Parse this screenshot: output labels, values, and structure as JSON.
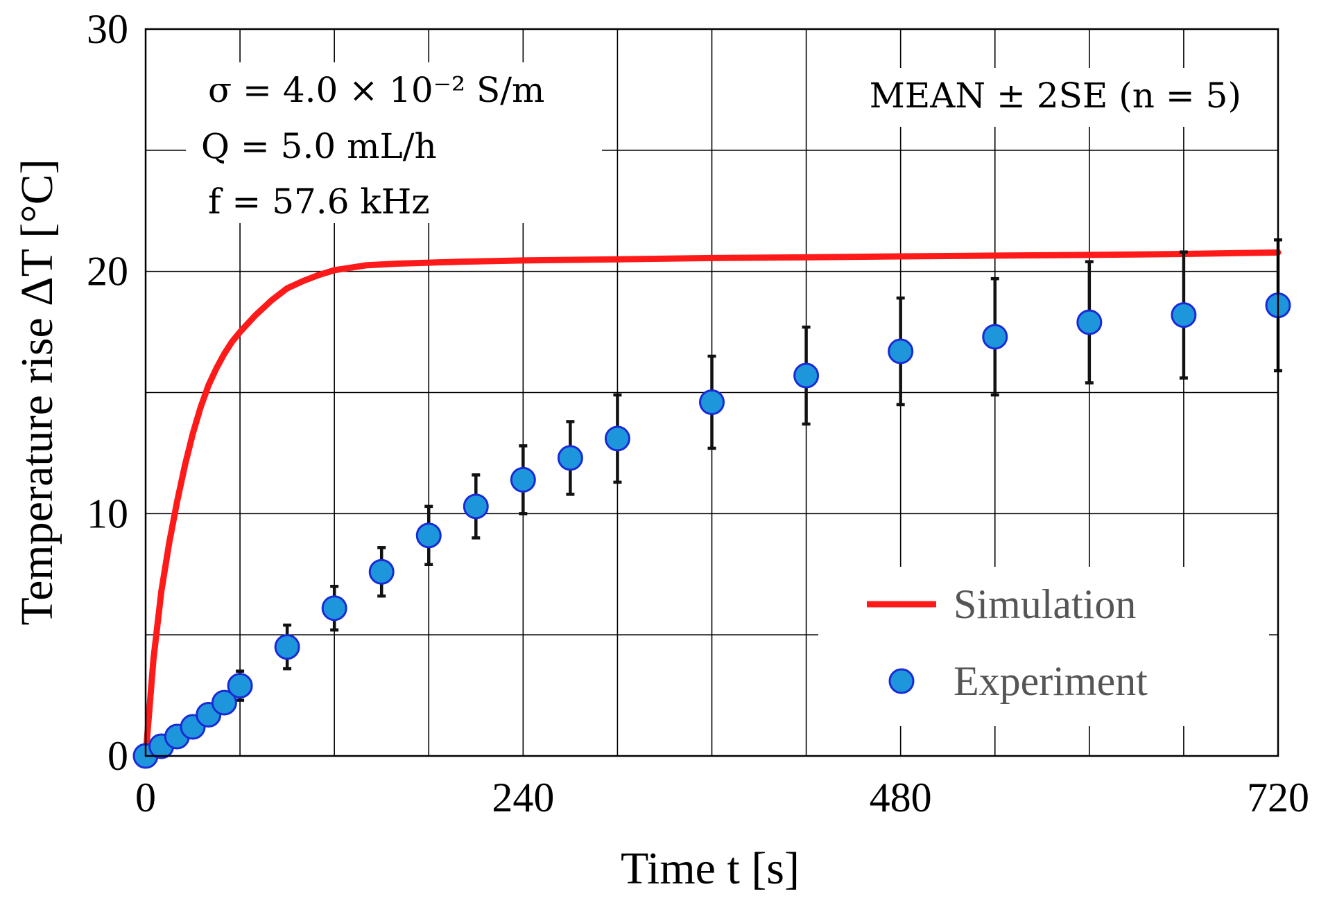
{
  "chart_data": {
    "type": "line",
    "xlabel": "Time t [s]",
    "ylabel": "Temperature rise ΔT [°C]",
    "xlim": [
      0,
      720
    ],
    "ylim": [
      0,
      30
    ],
    "xticks": [
      0,
      240,
      480,
      720
    ],
    "yticks": [
      0,
      10,
      20,
      30
    ],
    "grid": true,
    "legend_position": "bottom-right",
    "annotations": {
      "params": [
        "σ = 4.0 × 10⁻² S/m",
        "Q = 5.0 mL/h",
        "f = 57.6 kHz"
      ],
      "stat": "MEAN ± 2SE (n = 5)"
    },
    "series": [
      {
        "name": "Simulation",
        "kind": "line",
        "color": "#ff1a1a",
        "x": [
          0,
          5,
          10,
          15,
          20,
          25,
          30,
          35,
          40,
          45,
          50,
          55,
          60,
          70,
          80,
          90,
          100,
          110,
          120,
          140,
          160,
          180,
          200,
          240,
          300,
          360,
          420,
          480,
          540,
          600,
          660,
          720
        ],
        "y": [
          0,
          4.0,
          6.8,
          8.8,
          10.5,
          12.0,
          13.3,
          14.4,
          15.3,
          16.0,
          16.6,
          17.1,
          17.5,
          18.2,
          18.8,
          19.3,
          19.6,
          19.85,
          20.05,
          20.25,
          20.32,
          20.36,
          20.4,
          20.45,
          20.5,
          20.55,
          20.58,
          20.62,
          20.65,
          20.68,
          20.72,
          20.78
        ]
      },
      {
        "name": "Experiment",
        "kind": "scatter",
        "color": "#1e96dc",
        "edge_color": "#1a2ad6",
        "x": [
          0,
          10,
          20,
          30,
          40,
          50,
          60,
          90,
          120,
          150,
          180,
          210,
          240,
          270,
          300,
          360,
          420,
          480,
          540,
          600,
          660,
          720
        ],
        "y": [
          0,
          0.4,
          0.8,
          1.2,
          1.7,
          2.2,
          2.9,
          4.5,
          6.1,
          7.6,
          9.1,
          10.3,
          11.4,
          12.3,
          13.1,
          14.6,
          15.7,
          16.7,
          17.3,
          17.9,
          18.2,
          18.6
        ],
        "err": [
          0,
          0.1,
          0.1,
          0.2,
          0.3,
          0.4,
          0.6,
          0.9,
          0.9,
          1.0,
          1.2,
          1.3,
          1.4,
          1.5,
          1.8,
          1.9,
          2.0,
          2.2,
          2.4,
          2.5,
          2.6,
          2.7
        ]
      }
    ]
  }
}
